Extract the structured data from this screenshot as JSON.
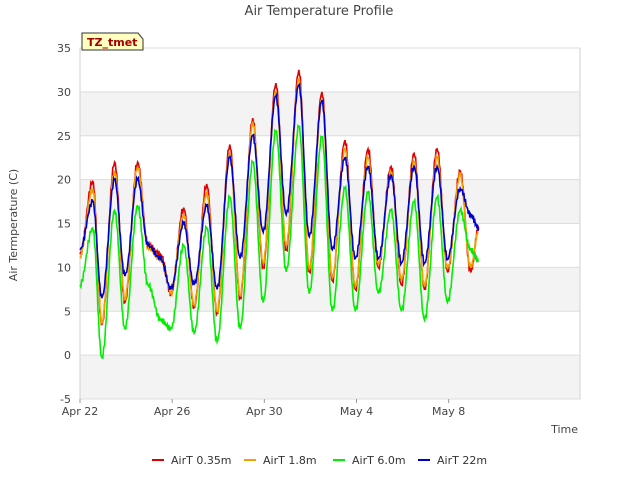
{
  "chart_data": {
    "type": "line",
    "title": "Air Temperature Profile",
    "xlabel": "Time",
    "ylabel": "Air Termperature (C)",
    "badge": "TZ_tmet",
    "ylim": [
      -5,
      35
    ],
    "y_ticks": [
      -5,
      0,
      5,
      10,
      15,
      20,
      25,
      30,
      35
    ],
    "xlim": [
      0,
      21.7
    ],
    "x_ticks": [
      {
        "x": 0,
        "label": "Apr 22"
      },
      {
        "x": 4,
        "label": "Apr 26"
      },
      {
        "x": 8,
        "label": "Apr 30"
      },
      {
        "x": 12,
        "label": "May 4"
      },
      {
        "x": 16,
        "label": "May 8"
      }
    ],
    "legend_position": "bottom",
    "grid": true,
    "x_days": [
      0.0,
      0.55,
      0.95,
      1.5,
      1.95,
      2.5,
      2.95,
      3.5,
      3.95,
      4.5,
      4.95,
      5.5,
      5.95,
      6.5,
      6.95,
      7.5,
      7.95,
      8.5,
      8.95,
      9.5,
      9.95,
      10.5,
      10.95,
      11.5,
      11.95,
      12.5,
      12.95,
      13.5,
      13.95,
      14.5,
      14.95,
      15.5,
      15.95,
      16.5,
      16.95,
      17.3
    ],
    "series": [
      {
        "name": "AirT 0.35m",
        "color": "#e00000",
        "values": [
          11.5,
          19.8,
          3.5,
          22.0,
          6.0,
          22.0,
          12.5,
          11.5,
          7.0,
          16.8,
          5.5,
          19.5,
          4.8,
          24.0,
          6.5,
          27.0,
          10.0,
          31.0,
          12.0,
          32.5,
          9.5,
          30.0,
          8.5,
          24.5,
          7.5,
          23.5,
          10.0,
          21.5,
          8.0,
          23.0,
          7.5,
          23.5,
          9.5,
          21.0,
          9.5,
          14.5
        ]
      },
      {
        "name": "AirT 1.8m",
        "color": "#f0a000",
        "values": [
          11.3,
          19.0,
          3.8,
          21.0,
          6.5,
          21.5,
          12.3,
          11.0,
          7.2,
          16.0,
          5.8,
          18.5,
          5.0,
          23.0,
          6.8,
          26.5,
          10.5,
          30.0,
          12.5,
          31.5,
          9.8,
          29.0,
          8.8,
          23.5,
          7.8,
          22.5,
          10.3,
          20.8,
          8.5,
          22.0,
          7.8,
          22.5,
          9.8,
          20.5,
          10.0,
          14.2
        ]
      },
      {
        "name": "AirT 6.0m",
        "color": "#00ee00",
        "values": [
          8.0,
          14.5,
          -0.3,
          16.5,
          3.0,
          17.0,
          8.0,
          4.0,
          3.0,
          12.5,
          2.5,
          14.5,
          1.5,
          18.0,
          3.0,
          22.0,
          6.0,
          25.5,
          9.5,
          26.0,
          7.0,
          24.8,
          5.0,
          19.0,
          5.0,
          18.5,
          7.0,
          16.5,
          5.0,
          17.5,
          4.0,
          18.0,
          6.0,
          16.5,
          12.0,
          10.8
        ]
      },
      {
        "name": "AirT 22m",
        "color": "#0000cc",
        "values": [
          12.0,
          17.5,
          6.5,
          20.0,
          9.0,
          20.0,
          12.5,
          11.0,
          7.5,
          15.0,
          8.0,
          17.0,
          7.5,
          22.5,
          11.0,
          25.0,
          14.0,
          29.5,
          16.0,
          30.8,
          13.5,
          29.0,
          12.0,
          22.5,
          11.0,
          21.5,
          11.0,
          20.5,
          10.5,
          21.5,
          10.5,
          21.5,
          11.0,
          19.0,
          16.0,
          14.5
        ]
      }
    ]
  }
}
